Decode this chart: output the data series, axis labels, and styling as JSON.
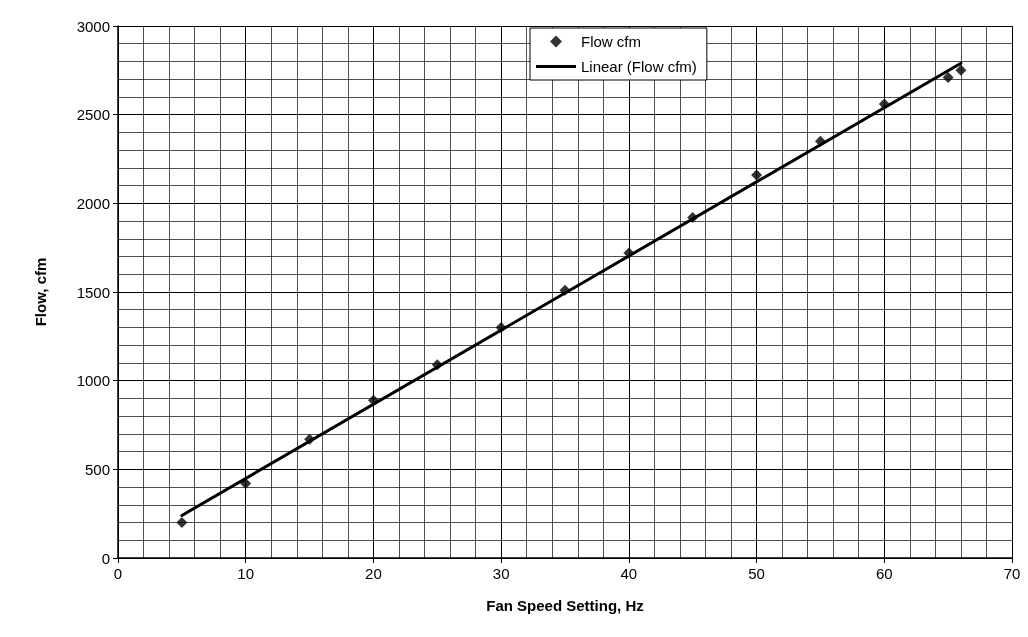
{
  "chart_data": {
    "type": "scatter",
    "xlabel": "Fan Speed Setting, Hz",
    "ylabel": "Flow, cfm",
    "xlim": [
      0,
      70
    ],
    "xticks": [
      0,
      10,
      20,
      30,
      40,
      50,
      60,
      70
    ],
    "ylim": [
      0,
      3000
    ],
    "yticks": [
      0,
      500,
      1000,
      1500,
      2000,
      2500,
      3000
    ],
    "grid": true,
    "legend": "top right",
    "series": [
      {
        "name": "Flow cfm",
        "marker": "diamond",
        "color": "#000000",
        "x": [
          5,
          10,
          15,
          20,
          25,
          30,
          35,
          40,
          45,
          50,
          55,
          60,
          65,
          66
        ],
        "values": [
          200,
          420,
          670,
          890,
          1090,
          1300,
          1510,
          1720,
          1920,
          2160,
          2350,
          2560,
          2710,
          2750
        ]
      },
      {
        "name": "Linear (Flow cfm)",
        "type": "line",
        "marker": "none",
        "line_style": "solid",
        "color": "#000000",
        "x": [
          5,
          66
        ],
        "values": [
          240,
          2790
        ]
      }
    ]
  }
}
